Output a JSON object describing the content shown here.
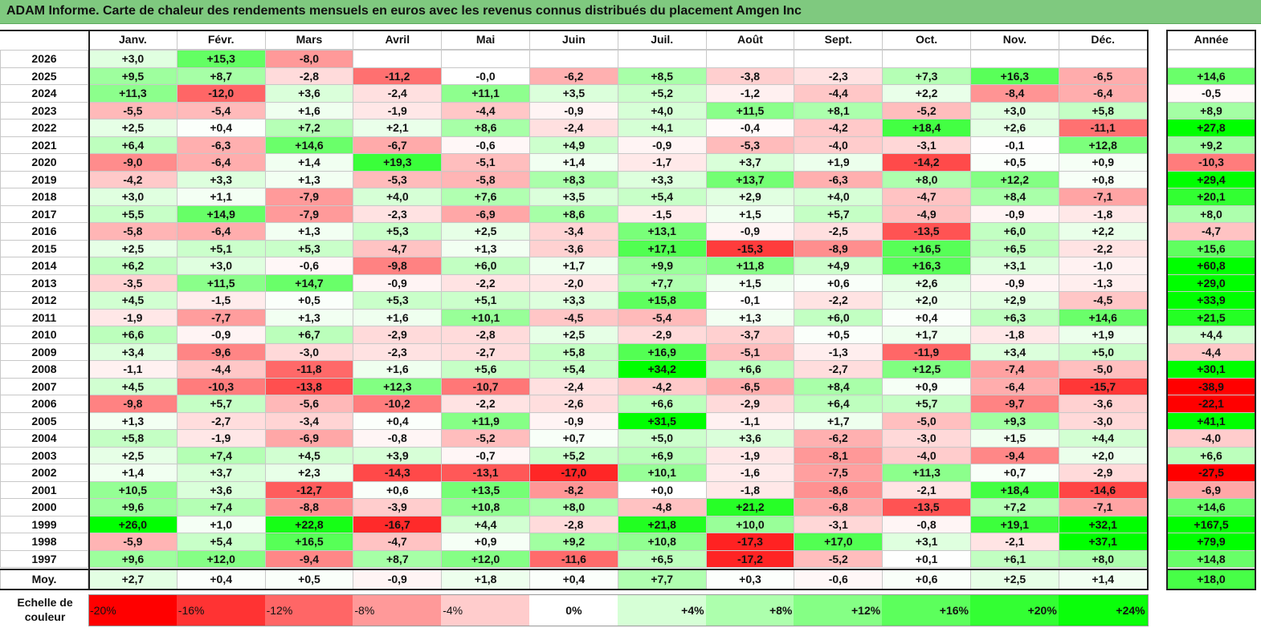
{
  "title": "ADAM Informe. Carte de chaleur des rendements mensuels en euros avec les revenus connus distribués du placement Amgen Inc",
  "colors": {
    "title_bg": "#7fc97f",
    "red": "#ff0000",
    "green": "#00ff00",
    "white": "#ffffff"
  },
  "chart_data": {
    "type": "heatmap",
    "title": "ADAM Informe. Carte de chaleur des rendements mensuels en euros avec les revenus connus distribués du placement Amgen Inc",
    "columns": [
      "Janv.",
      "Févr.",
      "Mars",
      "Avril",
      "Mai",
      "Juin",
      "Juil.",
      "Août",
      "Sept.",
      "Oct.",
      "Nov.",
      "Déc."
    ],
    "year_column": "Année",
    "rows": [
      {
        "year": "2026",
        "months": [
          "+3,0",
          "+15,3",
          "-8,0",
          "",
          "",
          "",
          "",
          "",
          "",
          "",
          "",
          ""
        ],
        "annual": ""
      },
      {
        "year": "2025",
        "months": [
          "+9,5",
          "+8,7",
          "-2,8",
          "-11,2",
          "-0,0",
          "-6,2",
          "+8,5",
          "-3,8",
          "-2,3",
          "+7,3",
          "+16,3",
          "-6,5"
        ],
        "annual": "+14,6"
      },
      {
        "year": "2024",
        "months": [
          "+11,3",
          "-12,0",
          "+3,6",
          "-2,4",
          "+11,1",
          "+3,5",
          "+5,2",
          "-1,2",
          "-4,4",
          "+2,2",
          "-8,4",
          "-6,4"
        ],
        "annual": "-0,5"
      },
      {
        "year": "2023",
        "months": [
          "-5,5",
          "-5,4",
          "+1,6",
          "-1,9",
          "-4,4",
          "-0,9",
          "+4,0",
          "+11,5",
          "+8,1",
          "-5,2",
          "+3,0",
          "+5,8"
        ],
        "annual": "+8,9"
      },
      {
        "year": "2022",
        "months": [
          "+2,5",
          "+0,4",
          "+7,2",
          "+2,1",
          "+8,6",
          "-2,4",
          "+4,1",
          "-0,4",
          "-4,2",
          "+18,4",
          "+2,6",
          "-11,1"
        ],
        "annual": "+27,8"
      },
      {
        "year": "2021",
        "months": [
          "+6,4",
          "-6,3",
          "+14,6",
          "-6,7",
          "-0,6",
          "+4,9",
          "-0,9",
          "-5,3",
          "-4,0",
          "-3,1",
          "-0,1",
          "+12,8"
        ],
        "annual": "+9,2"
      },
      {
        "year": "2020",
        "months": [
          "-9,0",
          "-6,4",
          "+1,4",
          "+19,3",
          "-5,1",
          "+1,4",
          "-1,7",
          "+3,7",
          "+1,9",
          "-14,2",
          "+0,5",
          "+0,9"
        ],
        "annual": "-10,3"
      },
      {
        "year": "2019",
        "months": [
          "-4,2",
          "+3,3",
          "+1,3",
          "-5,3",
          "-5,8",
          "+8,3",
          "+3,3",
          "+13,7",
          "-6,3",
          "+8,0",
          "+12,2",
          "+0,8"
        ],
        "annual": "+29,4"
      },
      {
        "year": "2018",
        "months": [
          "+3,0",
          "+1,1",
          "-7,9",
          "+4,0",
          "+7,6",
          "+3,5",
          "+5,4",
          "+2,9",
          "+4,0",
          "-4,7",
          "+8,4",
          "-7,1"
        ],
        "annual": "+20,1"
      },
      {
        "year": "2017",
        "months": [
          "+5,5",
          "+14,9",
          "-7,9",
          "-2,3",
          "-6,9",
          "+8,6",
          "-1,5",
          "+1,5",
          "+5,7",
          "-4,9",
          "-0,9",
          "-1,8"
        ],
        "annual": "+8,0"
      },
      {
        "year": "2016",
        "months": [
          "-5,8",
          "-6,4",
          "+1,3",
          "+5,3",
          "+2,5",
          "-3,4",
          "+13,1",
          "-0,9",
          "-2,5",
          "-13,5",
          "+6,0",
          "+2,2"
        ],
        "annual": "-4,7"
      },
      {
        "year": "2015",
        "months": [
          "+2,5",
          "+5,1",
          "+5,3",
          "-4,7",
          "+1,3",
          "-3,6",
          "+17,1",
          "-15,3",
          "-8,9",
          "+16,5",
          "+6,5",
          "-2,2"
        ],
        "annual": "+15,6"
      },
      {
        "year": "2014",
        "months": [
          "+6,2",
          "+3,0",
          "-0,6",
          "-9,8",
          "+6,0",
          "+1,7",
          "+9,9",
          "+11,8",
          "+4,9",
          "+16,3",
          "+3,1",
          "-1,0"
        ],
        "annual": "+60,8"
      },
      {
        "year": "2013",
        "months": [
          "-3,5",
          "+11,5",
          "+14,7",
          "-0,9",
          "-2,2",
          "-2,0",
          "+7,7",
          "+1,5",
          "+0,6",
          "+2,6",
          "-0,9",
          "-1,3"
        ],
        "annual": "+29,0"
      },
      {
        "year": "2012",
        "months": [
          "+4,5",
          "-1,5",
          "+0,5",
          "+5,3",
          "+5,1",
          "+3,3",
          "+15,8",
          "-0,1",
          "-2,2",
          "+2,0",
          "+2,9",
          "-4,5"
        ],
        "annual": "+33,9"
      },
      {
        "year": "2011",
        "months": [
          "-1,9",
          "-7,7",
          "+1,3",
          "+1,6",
          "+10,1",
          "-4,5",
          "-5,4",
          "+1,3",
          "+6,0",
          "+0,4",
          "+6,3",
          "+14,6"
        ],
        "annual": "+21,5"
      },
      {
        "year": "2010",
        "months": [
          "+6,6",
          "-0,9",
          "+6,7",
          "-2,9",
          "-2,8",
          "+2,5",
          "-2,9",
          "-3,7",
          "+0,5",
          "+1,7",
          "-1,8",
          "+1,9"
        ],
        "annual": "+4,4"
      },
      {
        "year": "2009",
        "months": [
          "+3,4",
          "-9,6",
          "-3,0",
          "-2,3",
          "-2,7",
          "+5,8",
          "+16,9",
          "-5,1",
          "-1,3",
          "-11,9",
          "+3,4",
          "+5,0"
        ],
        "annual": "-4,4"
      },
      {
        "year": "2008",
        "months": [
          "-1,1",
          "-4,4",
          "-11,8",
          "+1,6",
          "+5,6",
          "+5,4",
          "+34,2",
          "+6,6",
          "-2,7",
          "+12,5",
          "-7,4",
          "-5,0"
        ],
        "annual": "+30,1"
      },
      {
        "year": "2007",
        "months": [
          "+4,5",
          "-10,3",
          "-13,8",
          "+12,3",
          "-10,7",
          "-2,4",
          "-4,2",
          "-6,5",
          "+8,4",
          "+0,9",
          "-6,4",
          "-15,7"
        ],
        "annual": "-38,9"
      },
      {
        "year": "2006",
        "months": [
          "-9,8",
          "+5,7",
          "-5,6",
          "-10,2",
          "-2,2",
          "-2,6",
          "+6,6",
          "-2,9",
          "+6,4",
          "+5,7",
          "-9,7",
          "-3,6"
        ],
        "annual": "-22,1"
      },
      {
        "year": "2005",
        "months": [
          "+1,3",
          "-2,7",
          "-3,4",
          "+0,4",
          "+11,9",
          "-0,9",
          "+31,5",
          "-1,1",
          "+1,7",
          "-5,0",
          "+9,3",
          "-3,0"
        ],
        "annual": "+41,1"
      },
      {
        "year": "2004",
        "months": [
          "+5,8",
          "-1,9",
          "-6,9",
          "-0,8",
          "-5,2",
          "+0,7",
          "+5,0",
          "+3,6",
          "-6,2",
          "-3,0",
          "+1,5",
          "+4,4"
        ],
        "annual": "-4,0"
      },
      {
        "year": "2003",
        "months": [
          "+2,5",
          "+7,4",
          "+4,5",
          "+3,9",
          "-0,7",
          "+5,2",
          "+6,9",
          "-1,9",
          "-8,1",
          "-4,0",
          "-9,4",
          "+2,0"
        ],
        "annual": "+6,6"
      },
      {
        "year": "2002",
        "months": [
          "+1,4",
          "+3,7",
          "+2,3",
          "-14,3",
          "-13,1",
          "-17,0",
          "+10,1",
          "-1,6",
          "-7,5",
          "+11,3",
          "+0,7",
          "-2,9"
        ],
        "annual": "-27,5"
      },
      {
        "year": "2001",
        "months": [
          "+10,5",
          "+3,6",
          "-12,7",
          "+0,6",
          "+13,5",
          "-8,2",
          "+0,0",
          "-1,8",
          "-8,6",
          "-2,1",
          "+18,4",
          "-14,6"
        ],
        "annual": "-6,9"
      },
      {
        "year": "2000",
        "months": [
          "+9,6",
          "+7,4",
          "-8,8",
          "-3,9",
          "+10,8",
          "+8,0",
          "-4,8",
          "+21,2",
          "-6,8",
          "-13,5",
          "+7,2",
          "-7,1"
        ],
        "annual": "+14,6"
      },
      {
        "year": "1999",
        "months": [
          "+26,0",
          "+1,0",
          "+22,8",
          "-16,7",
          "+4,4",
          "-2,8",
          "+21,8",
          "+10,0",
          "-3,1",
          "-0,8",
          "+19,1",
          "+32,1"
        ],
        "annual": "+167,5"
      },
      {
        "year": "1998",
        "months": [
          "-5,9",
          "+5,4",
          "+16,5",
          "-4,7",
          "+0,9",
          "+9,2",
          "+10,8",
          "-17,3",
          "+17,0",
          "+3,1",
          "-2,1",
          "+37,1"
        ],
        "annual": "+79,9"
      },
      {
        "year": "1997",
        "months": [
          "+9,6",
          "+12,0",
          "-9,4",
          "+8,7",
          "+12,0",
          "-11,6",
          "+6,5",
          "-17,2",
          "-5,2",
          "+0,1",
          "+6,1",
          "+8,0"
        ],
        "annual": "+14,8"
      }
    ],
    "average": {
      "label": "Moy.",
      "months": [
        "+2,7",
        "+0,4",
        "+0,5",
        "-0,9",
        "+1,8",
        "+0,4",
        "+7,7",
        "+0,3",
        "-0,6",
        "+0,6",
        "+2,5",
        "+1,4"
      ],
      "annual": "+18,0"
    },
    "color_scale": {
      "label": "Echelle de couleur",
      "stops": [
        "-20%",
        "-16%",
        "-12%",
        "-8%",
        "-4%",
        "0%",
        "+4%",
        "+8%",
        "+12%",
        "+16%",
        "+20%",
        "+24%"
      ]
    }
  }
}
